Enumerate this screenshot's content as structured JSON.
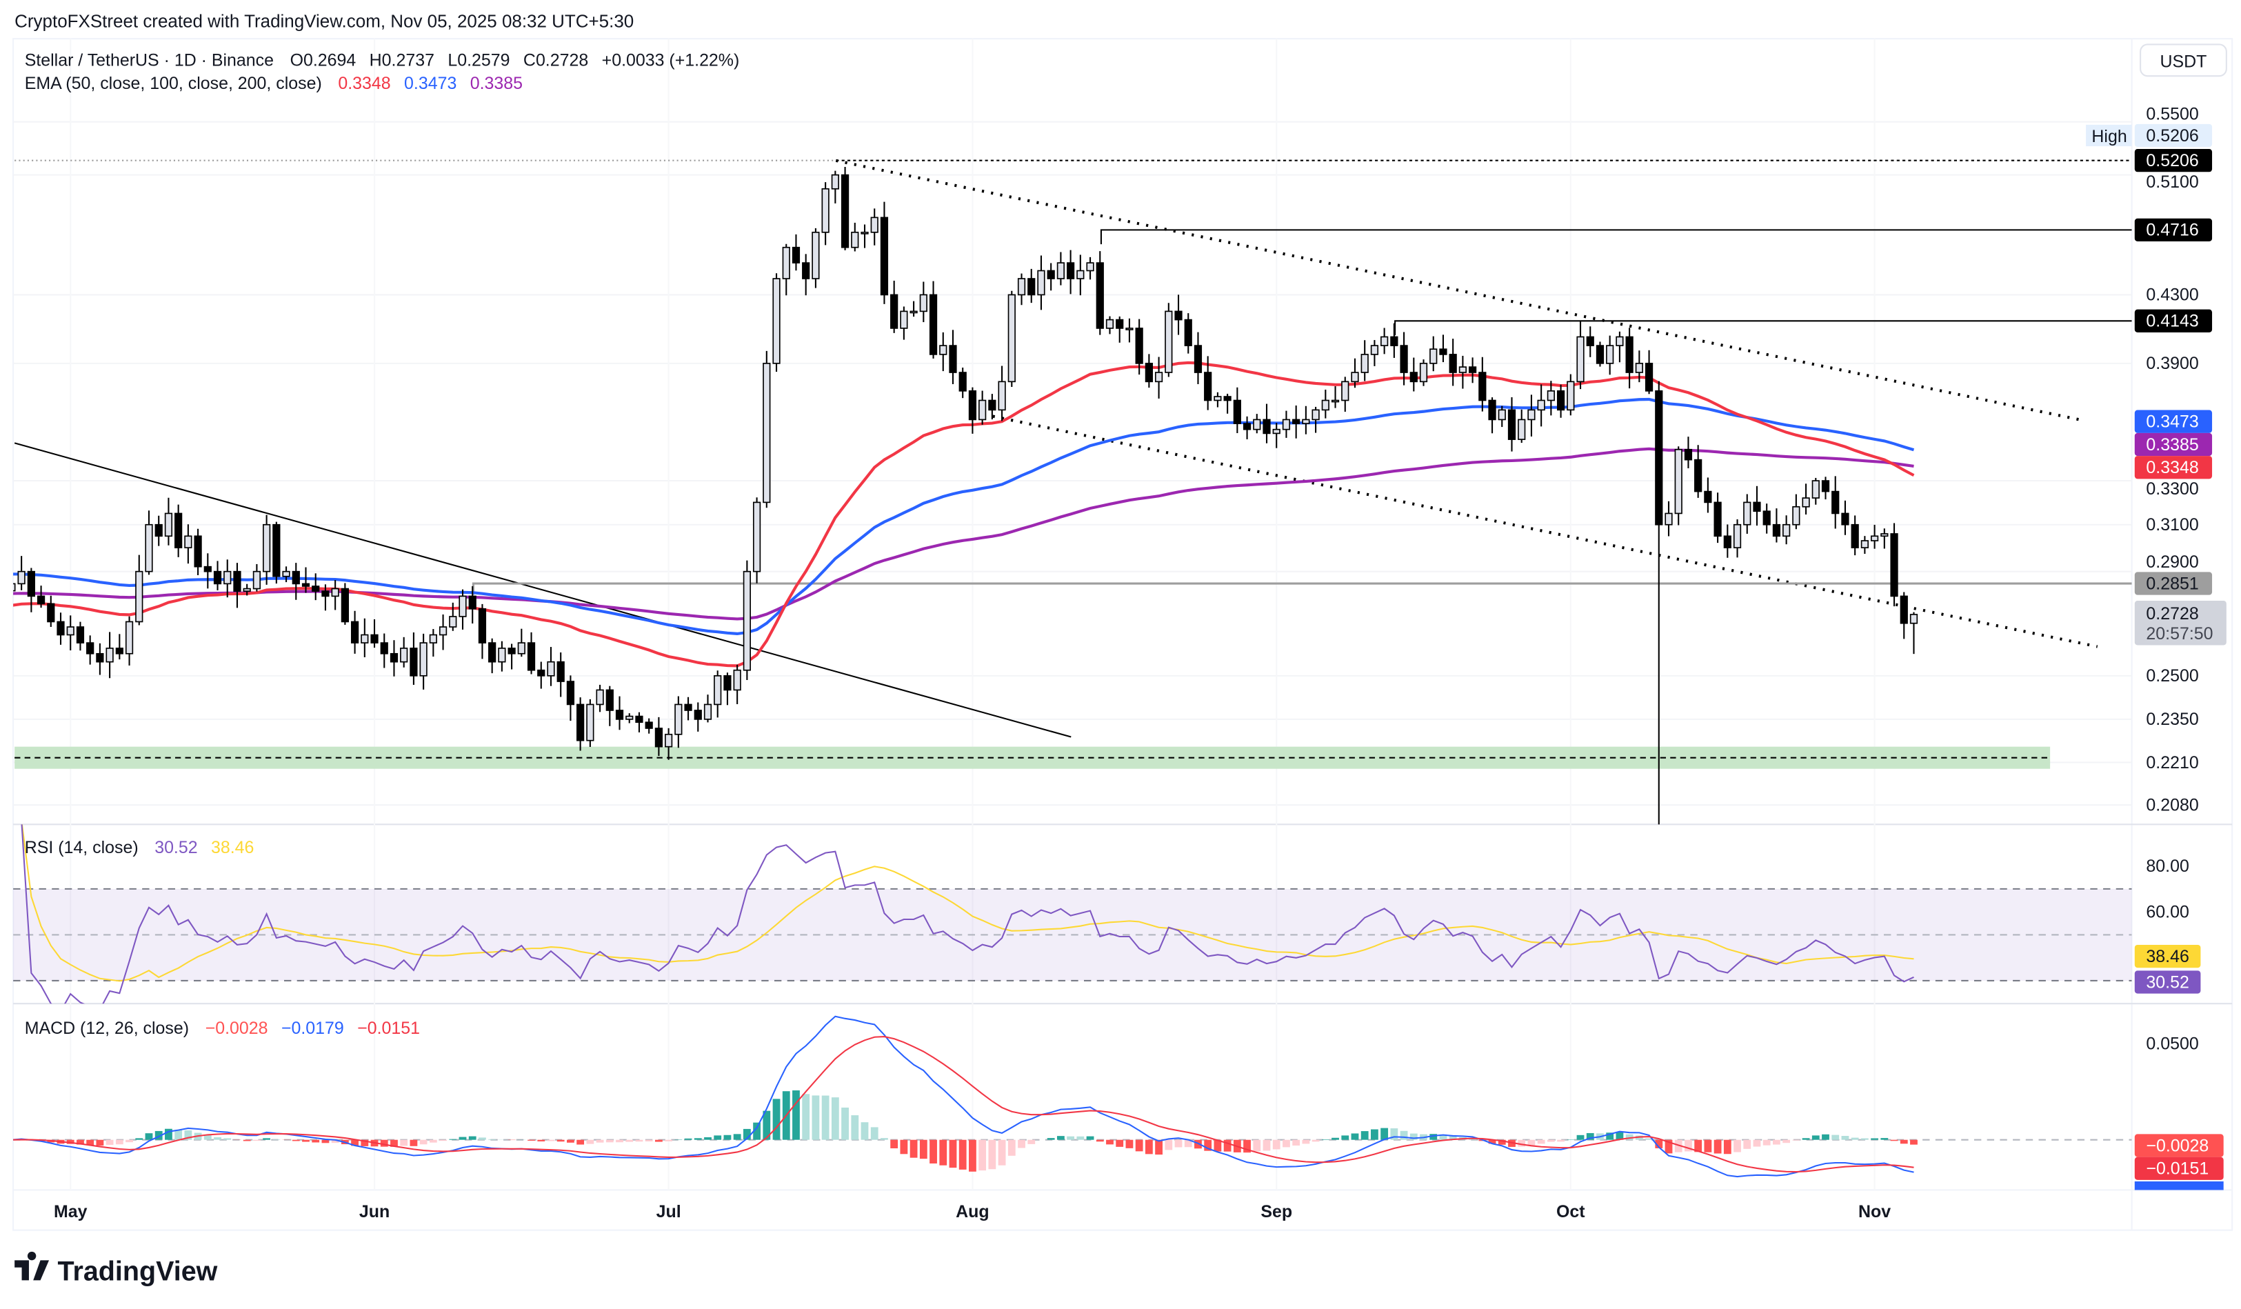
{
  "header": {
    "attribution": "CryptoFXStreet created with TradingView.com, Nov 05, 2025 08:32 UTC+5:30"
  },
  "legend": {
    "symbol": "Stellar / TetherUS · 1D · Binance",
    "open": "O0.2694",
    "high": "H0.2737",
    "low": "L0.2579",
    "close": "C0.2728",
    "change": "+0.0033 (+1.22%)",
    "ema_label": "EMA (50, close, 100, close, 200, close)",
    "ema50": "0.3348",
    "ema100": "0.3473",
    "ema200": "0.3385"
  },
  "rsi_legend": {
    "label": "RSI (14, close)",
    "rsi": "30.52",
    "ma": "38.46"
  },
  "macd_legend": {
    "label": "MACD (12, 26, close)",
    "hist": "−0.0028",
    "macd": "−0.0179",
    "signal": "−0.0151"
  },
  "currency_button": "USDT",
  "price_axis": [
    "0.5500",
    "0.5100",
    "0.4300",
    "0.3900",
    "0.3300",
    "0.3100",
    "0.2900",
    "0.2500",
    "0.2350",
    "0.2210",
    "0.2080"
  ],
  "price_tags": {
    "high_label": "High",
    "high_value": "0.5206",
    "level_1": "0.5206",
    "level_2": "0.4716",
    "level_3": "0.4143",
    "ema100": "0.3473",
    "ema200": "0.3385",
    "ema50": "0.3348",
    "support": "0.2851",
    "last": "0.2728",
    "countdown": "20:57:50"
  },
  "rsi_axis": [
    "80.00",
    "60.00"
  ],
  "rsi_tags": {
    "ma": "38.46",
    "rsi": "30.52"
  },
  "macd_axis": [
    "0.0500"
  ],
  "macd_tags": {
    "hist": "−0.0028",
    "signal": "−0.0151",
    "macd": "−0.0179"
  },
  "time_axis": [
    "May",
    "Jun",
    "Jul",
    "Aug",
    "Sep",
    "Oct",
    "Nov"
  ],
  "logo": "TradingView",
  "colors": {
    "ema50": "#f23645",
    "ema100": "#2962ff",
    "ema200": "#9c27b0",
    "rsi": "#7e57c2",
    "rsi_ma": "#fdd835",
    "support_zone": "#c8e6c9"
  },
  "chart_data": {
    "type": "candlestick",
    "scale": "log",
    "ylim": [
      0.208,
      0.55
    ],
    "grid": true,
    "segments": [
      {
        "month": "2025-04",
        "first_day": 25,
        "close": [
          0.285,
          0.29,
          0.28,
          0.277,
          0.27,
          0.265
        ]
      },
      {
        "month": "2025-05",
        "first_day": 1,
        "close": [
          0.268,
          0.262,
          0.258,
          0.255,
          0.26,
          0.258,
          0.27,
          0.29,
          0.31,
          0.305,
          0.315,
          0.3,
          0.305,
          0.292,
          0.29,
          0.285,
          0.29,
          0.282,
          0.283,
          0.29,
          0.31,
          0.288,
          0.29,
          0.285,
          0.284,
          0.282,
          0.28,
          0.283,
          0.27,
          0.262,
          0.265
        ]
      },
      {
        "month": "2025-06",
        "first_day": 1,
        "close": [
          0.262,
          0.258,
          0.255,
          0.26,
          0.25,
          0.262,
          0.265,
          0.268,
          0.272,
          0.28,
          0.275,
          0.262,
          0.255,
          0.26,
          0.258,
          0.262,
          0.252,
          0.25,
          0.255,
          0.248,
          0.24,
          0.228,
          0.24,
          0.245,
          0.238,
          0.235,
          0.236,
          0.234,
          0.232,
          0.226
        ]
      },
      {
        "month": "2025-07",
        "first_day": 1,
        "close": [
          0.23,
          0.24,
          0.238,
          0.235,
          0.24,
          0.25,
          0.245,
          0.252,
          0.29,
          0.32,
          0.39,
          0.44,
          0.46,
          0.45,
          0.44,
          0.47,
          0.5,
          0.51,
          0.46,
          0.47,
          0.47,
          0.48,
          0.43,
          0.41,
          0.42,
          0.42,
          0.43,
          0.395,
          0.4,
          0.385,
          0.375
        ]
      },
      {
        "month": "2025-08",
        "first_day": 1,
        "close": [
          0.36,
          0.37,
          0.365,
          0.38,
          0.43,
          0.44,
          0.43,
          0.445,
          0.44,
          0.45,
          0.44,
          0.445,
          0.45,
          0.41,
          0.415,
          0.41,
          0.41,
          0.39,
          0.38,
          0.385,
          0.42,
          0.415,
          0.4,
          0.385,
          0.37,
          0.372,
          0.37,
          0.358,
          0.355,
          0.36,
          0.353
        ]
      },
      {
        "month": "2025-09",
        "first_day": 1,
        "close": [
          0.355,
          0.36,
          0.358,
          0.36,
          0.365,
          0.37,
          0.37,
          0.38,
          0.385,
          0.395,
          0.4,
          0.405,
          0.4,
          0.385,
          0.38,
          0.39,
          0.398,
          0.395,
          0.385,
          0.388,
          0.385,
          0.37,
          0.36,
          0.365,
          0.35,
          0.36,
          0.365,
          0.37,
          0.375,
          0.365
        ]
      },
      {
        "month": "2025-10",
        "first_day": 1,
        "close": [
          0.38,
          0.405,
          0.4,
          0.39,
          0.4,
          0.405,
          0.385,
          0.39,
          0.375,
          0.31,
          0.315,
          0.345,
          0.34,
          0.325,
          0.32,
          0.305,
          0.3,
          0.31,
          0.32,
          0.316,
          0.31,
          0.305,
          0.31,
          0.318,
          0.322,
          0.33,
          0.325,
          0.315,
          0.31,
          0.3,
          0.303
        ]
      },
      {
        "month": "2025-11",
        "first_day": 1,
        "close": [
          0.305,
          0.306,
          0.28,
          0.2694,
          0.2728
        ]
      }
    ],
    "last_candle": {
      "open": 0.2694,
      "high": 0.2737,
      "low": 0.2579,
      "close": 0.2728
    },
    "wick_low_oct_10": 0.19,
    "horizontal_levels": [
      0.5206,
      0.4716,
      0.4143,
      0.2851
    ],
    "support_zone": [
      0.219,
      0.226
    ],
    "rsi_bands": [
      70,
      50,
      30
    ]
  }
}
